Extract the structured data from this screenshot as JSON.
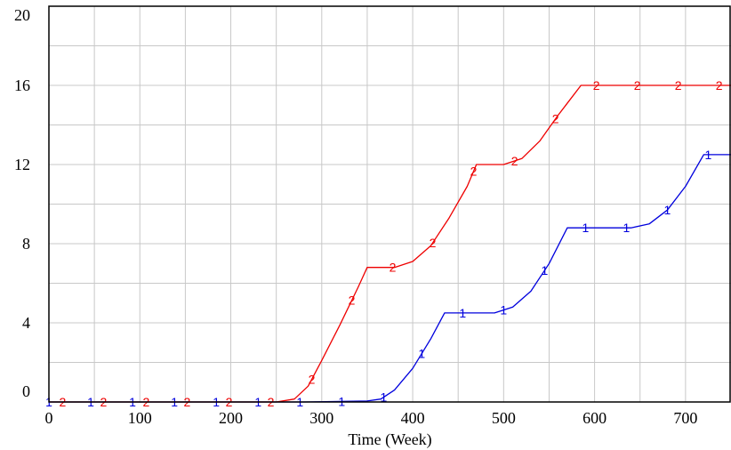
{
  "chart_data": {
    "type": "line",
    "title": "",
    "xlabel": "Time (Week)",
    "ylabel": "",
    "xlim": [
      0,
      750
    ],
    "ylim": [
      0,
      20
    ],
    "xticks": [
      0,
      100,
      200,
      300,
      400,
      500,
      600,
      700
    ],
    "yticks": [
      0,
      4,
      8,
      12,
      16,
      20
    ],
    "grid": true,
    "legend": "none",
    "series": [
      {
        "label": "1",
        "color": "#0000dd",
        "points": [
          [
            0,
            0
          ],
          [
            280,
            0
          ],
          [
            350,
            0.05
          ],
          [
            365,
            0.15
          ],
          [
            380,
            0.6
          ],
          [
            400,
            1.7
          ],
          [
            420,
            3.2
          ],
          [
            435,
            4.5
          ],
          [
            490,
            4.5
          ],
          [
            510,
            4.8
          ],
          [
            530,
            5.6
          ],
          [
            550,
            7.0
          ],
          [
            570,
            8.8
          ],
          [
            640,
            8.8
          ],
          [
            660,
            9.0
          ],
          [
            680,
            9.7
          ],
          [
            700,
            10.9
          ],
          [
            720,
            12.5
          ],
          [
            750,
            12.5
          ]
        ],
        "markers": [
          0,
          46,
          92,
          138,
          184,
          230,
          276,
          322,
          368,
          410,
          455,
          500,
          545,
          590,
          635,
          680,
          725
        ]
      },
      {
        "label": "2",
        "color": "#ee0000",
        "points": [
          [
            0,
            0
          ],
          [
            250,
            0
          ],
          [
            270,
            0.15
          ],
          [
            285,
            0.8
          ],
          [
            300,
            2.1
          ],
          [
            320,
            3.9
          ],
          [
            340,
            5.8
          ],
          [
            350,
            6.8
          ],
          [
            380,
            6.8
          ],
          [
            400,
            7.1
          ],
          [
            420,
            7.9
          ],
          [
            440,
            9.3
          ],
          [
            460,
            10.9
          ],
          [
            470,
            12.0
          ],
          [
            500,
            12.0
          ],
          [
            520,
            12.3
          ],
          [
            540,
            13.2
          ],
          [
            560,
            14.5
          ],
          [
            585,
            16.0
          ],
          [
            750,
            16.0
          ]
        ],
        "markers": [
          15,
          60,
          107,
          152,
          198,
          244,
          289,
          333,
          378,
          422,
          467,
          512,
          557,
          602,
          647,
          692,
          737
        ]
      }
    ]
  }
}
